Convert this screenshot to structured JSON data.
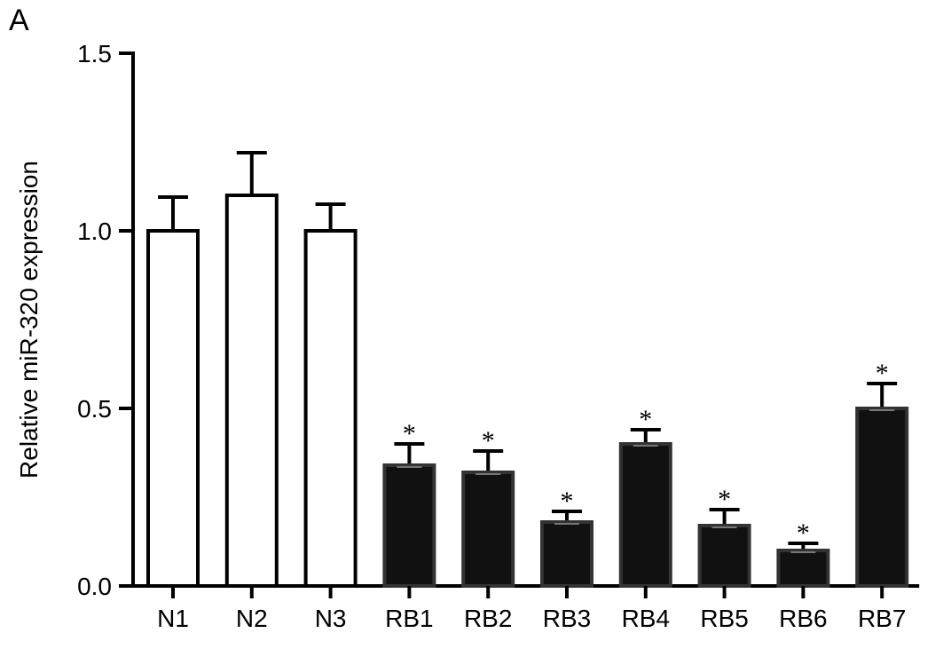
{
  "panel_label": "A",
  "chart_data": {
    "type": "bar",
    "title": "",
    "xlabel": "",
    "ylabel": "Relative miR-320 expression",
    "ylim": [
      0,
      1.5
    ],
    "yticks": [
      "0.0",
      "0.5",
      "1.0",
      "1.5"
    ],
    "ytick_values": [
      0,
      0.5,
      1.0,
      1.5
    ],
    "grid": false,
    "categories": [
      "N1",
      "N2",
      "N3",
      "RB1",
      "RB2",
      "RB3",
      "RB4",
      "RB5",
      "RB6",
      "RB7"
    ],
    "values": [
      1.0,
      1.1,
      1.0,
      0.34,
      0.32,
      0.18,
      0.4,
      0.17,
      0.1,
      0.5
    ],
    "errors": [
      0.095,
      0.12,
      0.075,
      0.06,
      0.06,
      0.03,
      0.04,
      0.045,
      0.02,
      0.07
    ],
    "fills": [
      "#ffffff",
      "#ffffff",
      "#ffffff",
      "#111111",
      "#111111",
      "#111111",
      "#111111",
      "#111111",
      "#111111",
      "#111111"
    ],
    "significance": [
      "",
      "",
      "",
      "*",
      "*",
      "*",
      "*",
      "*",
      "*",
      "*"
    ]
  }
}
